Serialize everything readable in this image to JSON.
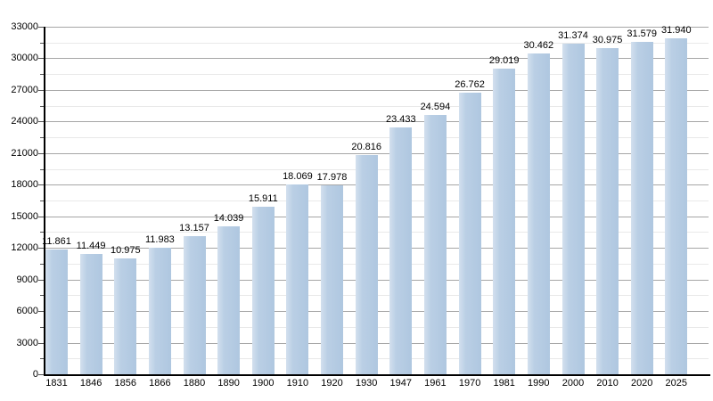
{
  "chart_data": {
    "type": "bar",
    "title": "",
    "xlabel": "",
    "ylabel": "",
    "categories": [
      "1831",
      "1846",
      "1856",
      "1866",
      "1880",
      "1890",
      "1900",
      "1910",
      "1920",
      "1930",
      "1947",
      "1961",
      "1970",
      "1981",
      "1990",
      "2000",
      "2010",
      "2020",
      "2025"
    ],
    "values": [
      11861,
      11449,
      10975,
      11983,
      13157,
      14039,
      15911,
      18069,
      17978,
      20816,
      23433,
      24594,
      26762,
      29019,
      30462,
      31374,
      30975,
      31579,
      31940
    ],
    "value_labels": [
      "11.861",
      "11.449",
      "10.975",
      "11.983",
      "13.157",
      "14.039",
      "15.911",
      "18.069",
      "17.978",
      "20.816",
      "23.433",
      "24.594",
      "26.762",
      "29.019",
      "30.462",
      "31.374",
      "30.975",
      "31.579",
      "31.940"
    ],
    "ylim": [
      0,
      33000
    ],
    "ytick_step": 3000,
    "ytick_minor_step": 1500,
    "ytick_labels": [
      "0",
      "3000",
      "6000",
      "9000",
      "12000",
      "15000",
      "18000",
      "21000",
      "24000",
      "27000",
      "30000",
      "33000"
    ],
    "grid": true,
    "legend": "none",
    "colors": {
      "bar": "#afc7e0",
      "bar_highlight": "#d3e0ee",
      "axis": "#000000",
      "major_grid": "#a6a6a6",
      "minor_grid": "#e9e9e9",
      "text": "#000000",
      "background": "#ffffff"
    }
  }
}
